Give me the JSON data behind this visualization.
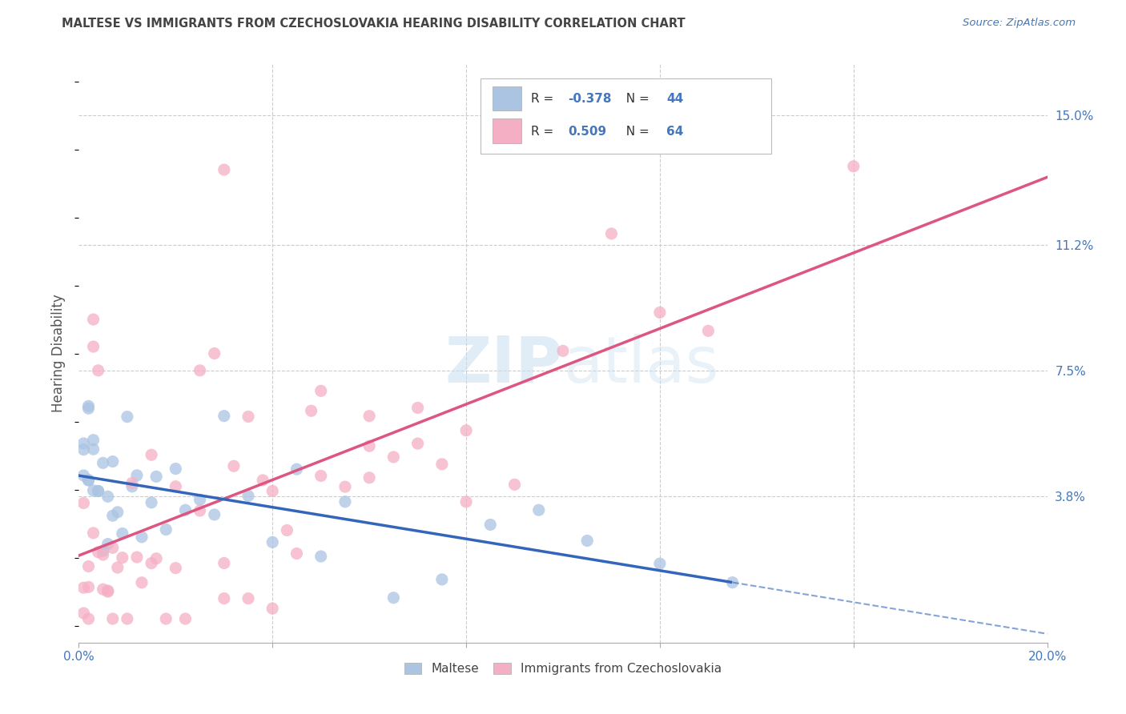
{
  "title": "MALTESE VS IMMIGRANTS FROM CZECHOSLOVAKIA HEARING DISABILITY CORRELATION CHART",
  "source": "Source: ZipAtlas.com",
  "ylabel": "Hearing Disability",
  "xlim": [
    0.0,
    0.2
  ],
  "ylim": [
    -0.005,
    0.165
  ],
  "xticks": [
    0.0,
    0.04,
    0.08,
    0.12,
    0.16,
    0.2
  ],
  "xticklabels": [
    "0.0%",
    "",
    "",
    "",
    "",
    "20.0%"
  ],
  "ytick_right_labels": [
    "15.0%",
    "11.2%",
    "7.5%",
    "3.8%"
  ],
  "ytick_right_values": [
    0.15,
    0.112,
    0.075,
    0.038
  ],
  "maltese_R": -0.378,
  "maltese_N": 44,
  "czech_R": 0.509,
  "czech_N": 64,
  "maltese_color": "#aac4e2",
  "czech_color": "#f5afc5",
  "maltese_line_color": "#3366bb",
  "czech_line_color": "#dd5580",
  "legend_maltese_label": "Maltese",
  "legend_czech_label": "Immigrants from Czechoslovakia",
  "watermark_zip": "ZIP",
  "watermark_atlas": "atlas",
  "background_color": "#ffffff",
  "grid_color": "#cccccc"
}
